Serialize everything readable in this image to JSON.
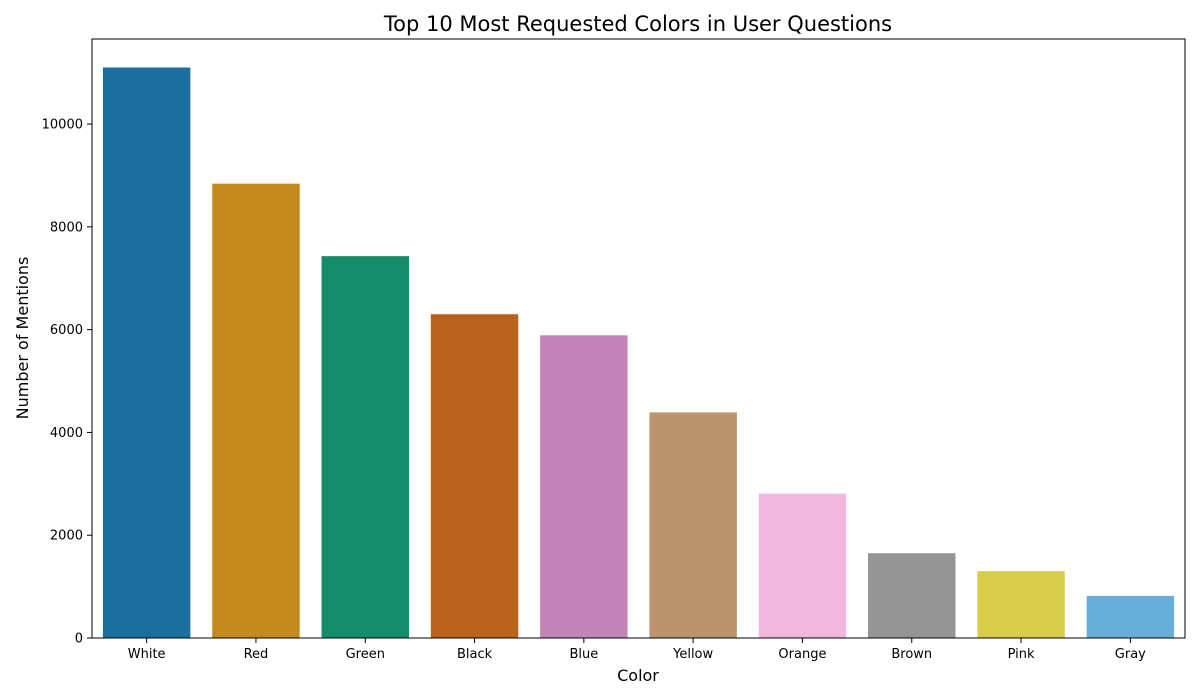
{
  "chart_data": {
    "type": "bar",
    "title": "Top 10 Most Requested Colors in User Questions",
    "xlabel": "Color",
    "ylabel": "Number of Mentions",
    "categories": [
      "White",
      "Red",
      "Green",
      "Black",
      "Blue",
      "Yellow",
      "Orange",
      "Brown",
      "Pink",
      "Gray"
    ],
    "values": [
      11100,
      8840,
      7430,
      6300,
      5890,
      4390,
      2810,
      1650,
      1300,
      820
    ],
    "bar_colors": [
      "#1a6f9f",
      "#c4891f",
      "#158d6a",
      "#b8621b",
      "#c384b7",
      "#bd926f",
      "#f2b7df",
      "#959595",
      "#d7cd49",
      "#67aed9"
    ],
    "ylim": [
      0,
      11655
    ],
    "yticks": [
      0,
      2000,
      4000,
      6000,
      8000,
      10000
    ],
    "grid": false,
    "legend": "none"
  }
}
